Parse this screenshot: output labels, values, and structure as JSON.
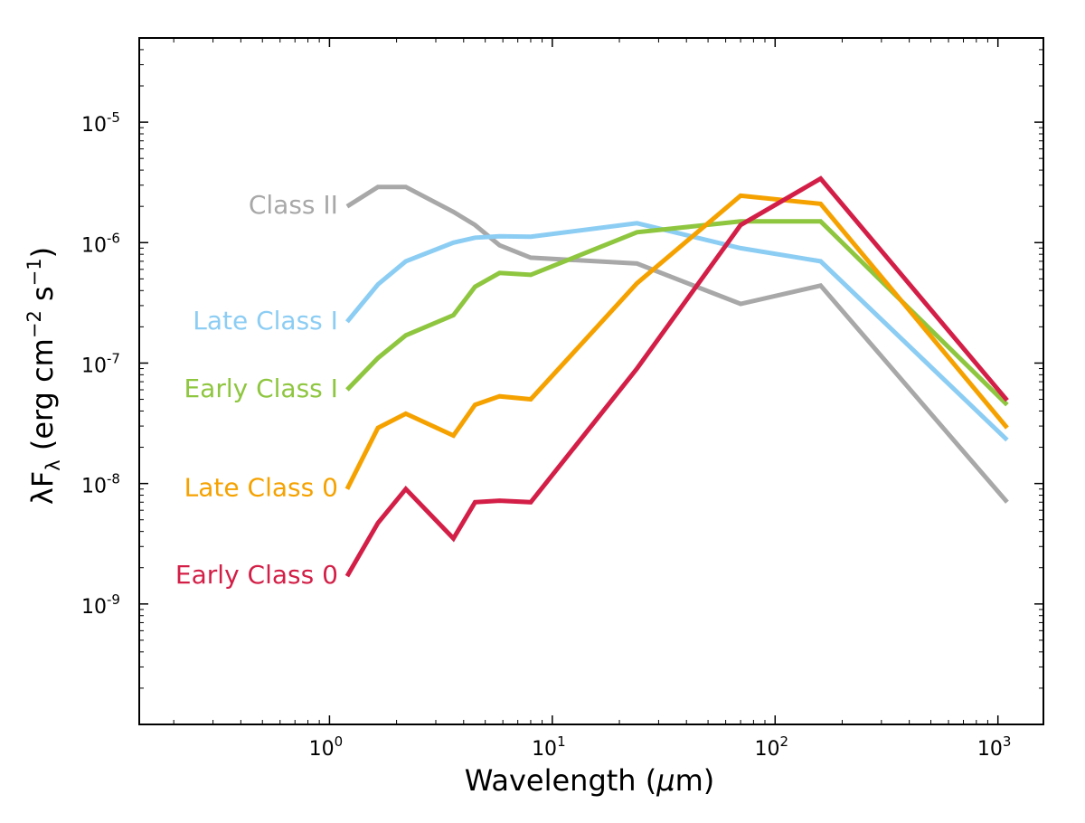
{
  "chart_data": {
    "type": "line",
    "title": "",
    "xscale": "log",
    "yscale": "log",
    "xlim": [
      0.14,
      1600
    ],
    "ylim": [
      1e-10,
      5e-05
    ],
    "grid": false,
    "legend": "inline-left",
    "xlabel": {
      "prefix": "Wavelength (",
      "symbol": "μ",
      "suffix": "m)"
    },
    "ylabel": {
      "lambda": "λ",
      "F": "F",
      "sub": "λ",
      "p1": " (erg cm",
      "sup1": "−2",
      "p2": " s",
      "sup2": "−1",
      "p3": ")"
    },
    "xticks": [
      {
        "value": 1,
        "base": "10",
        "exp": "0"
      },
      {
        "value": 10,
        "base": "10",
        "exp": "1"
      },
      {
        "value": 100,
        "base": "10",
        "exp": "2"
      },
      {
        "value": 1000,
        "base": "10",
        "exp": "3"
      }
    ],
    "yticks": [
      {
        "value": 1e-09,
        "base": "10",
        "exp": "-9"
      },
      {
        "value": 1e-08,
        "base": "10",
        "exp": "-8"
      },
      {
        "value": 1e-07,
        "base": "10",
        "exp": "-7"
      },
      {
        "value": 1e-06,
        "base": "10",
        "exp": "-6"
      },
      {
        "value": 1e-05,
        "base": "10",
        "exp": "-5"
      }
    ],
    "series": [
      {
        "name": "Class II",
        "color": "#a8a8a8",
        "points": [
          [
            1.2,
            2e-06
          ],
          [
            1.65,
            2.9e-06
          ],
          [
            2.2,
            2.9e-06
          ],
          [
            3.6,
            1.8e-06
          ],
          [
            4.5,
            1.4e-06
          ],
          [
            5.8,
            9.5e-07
          ],
          [
            8.0,
            7.5e-07
          ],
          [
            24,
            6.7e-07
          ],
          [
            70,
            3.1e-07
          ],
          [
            160,
            4.4e-07
          ],
          [
            1100,
            7e-09
          ]
        ]
      },
      {
        "name": "Late Class I",
        "color": "#8ccdf4",
        "points": [
          [
            1.2,
            2.2e-07
          ],
          [
            1.65,
            4.5e-07
          ],
          [
            2.2,
            7e-07
          ],
          [
            3.6,
            1e-06
          ],
          [
            4.5,
            1.1e-06
          ],
          [
            5.8,
            1.13e-06
          ],
          [
            8.0,
            1.12e-06
          ],
          [
            24,
            1.45e-06
          ],
          [
            70,
            9e-07
          ],
          [
            160,
            7e-07
          ],
          [
            1100,
            2.3e-08
          ]
        ]
      },
      {
        "name": "Early Class I",
        "color": "#8ec63f",
        "points": [
          [
            1.2,
            6e-08
          ],
          [
            1.65,
            1.1e-07
          ],
          [
            2.2,
            1.7e-07
          ],
          [
            3.6,
            2.5e-07
          ],
          [
            4.5,
            4.3e-07
          ],
          [
            5.8,
            5.6e-07
          ],
          [
            8.0,
            5.4e-07
          ],
          [
            24,
            1.22e-06
          ],
          [
            70,
            1.5e-06
          ],
          [
            160,
            1.5e-06
          ],
          [
            1100,
            4.5e-08
          ]
        ]
      },
      {
        "name": "Late Class 0",
        "color": "#f5a200",
        "points": [
          [
            1.2,
            9e-09
          ],
          [
            1.65,
            2.9e-08
          ],
          [
            2.2,
            3.8e-08
          ],
          [
            3.6,
            2.5e-08
          ],
          [
            4.5,
            4.5e-08
          ],
          [
            5.8,
            5.3e-08
          ],
          [
            8.0,
            5e-08
          ],
          [
            24,
            4.6e-07
          ],
          [
            70,
            2.45e-06
          ],
          [
            160,
            2.1e-06
          ],
          [
            1100,
            2.9e-08
          ]
        ]
      },
      {
        "name": "Early Class 0",
        "color": "#d31f47",
        "points": [
          [
            1.2,
            1.7e-09
          ],
          [
            1.65,
            4.7e-09
          ],
          [
            2.2,
            9e-09
          ],
          [
            3.6,
            3.5e-09
          ],
          [
            4.5,
            7e-09
          ],
          [
            5.8,
            7.2e-09
          ],
          [
            8.0,
            7e-09
          ],
          [
            24,
            9e-08
          ],
          [
            70,
            1.4e-06
          ],
          [
            160,
            3.4e-06
          ],
          [
            1100,
            4.9e-08
          ]
        ]
      }
    ]
  }
}
